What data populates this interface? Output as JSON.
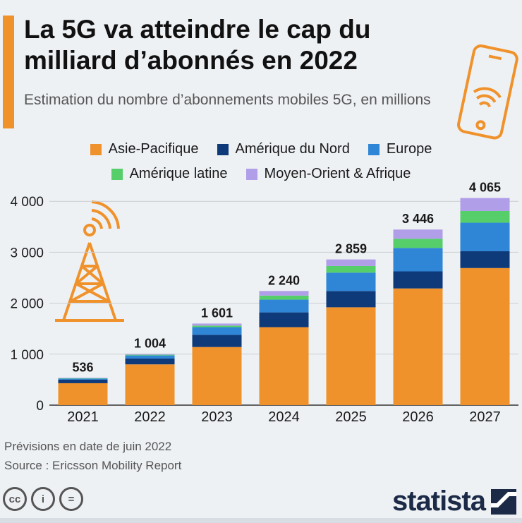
{
  "header": {
    "title": "La 5G va atteindre le cap du milliard d’abonnés en 2022",
    "subtitle": "Estimation du nombre d’abonnements mobiles 5G, en millions"
  },
  "legend": {
    "items": [
      {
        "label": "Asie-Pacifique",
        "color": "#f0922b"
      },
      {
        "label": "Amérique du Nord",
        "color": "#0f3a7a"
      },
      {
        "label": "Europe",
        "color": "#2f86d6"
      },
      {
        "label": "Amérique latine",
        "color": "#56cf6b"
      },
      {
        "label": "Moyen-Orient & Afrique",
        "color": "#b09ee8"
      }
    ]
  },
  "chart_data": {
    "type": "bar",
    "stacked": true,
    "categories": [
      "2021",
      "2022",
      "2023",
      "2024",
      "2025",
      "2026",
      "2027"
    ],
    "series": [
      {
        "name": "Asie-Pacifique",
        "color": "#f0922b",
        "values": [
          430,
          800,
          1140,
          1530,
          1920,
          2290,
          2690
        ]
      },
      {
        "name": "Amérique du Nord",
        "color": "#0f3a7a",
        "values": [
          70,
          115,
          240,
          290,
          320,
          335,
          330
        ]
      },
      {
        "name": "Europe",
        "color": "#2f86d6",
        "values": [
          22,
          60,
          150,
          250,
          360,
          460,
          560
        ]
      },
      {
        "name": "Amérique latine",
        "color": "#56cf6b",
        "values": [
          6,
          14,
          30,
          80,
          130,
          180,
          230
        ]
      },
      {
        "name": "Moyen-Orient & Afrique",
        "color": "#b09ee8",
        "values": [
          8,
          15,
          41,
          90,
          129,
          181,
          255
        ]
      }
    ],
    "totals": [
      536,
      1004,
      1601,
      2240,
      2859,
      3446,
      4065
    ],
    "total_labels": [
      "536",
      "1 004",
      "1 601",
      "2 240",
      "2 859",
      "3 446",
      "4 065"
    ],
    "yticks": [
      0,
      1000,
      2000,
      3000,
      4000
    ],
    "ytick_labels": [
      "0",
      "1 000",
      "2 000",
      "3 000",
      "4 000"
    ],
    "ylim": [
      0,
      4100
    ],
    "grid": true,
    "legend_position": "top"
  },
  "footer": {
    "note": "Prévisions en date de juin 2022",
    "source": "Source : Ericsson Mobility Report",
    "brand": "statista",
    "cc_icons": [
      "cc-icon",
      "by-icon",
      "nd-icon"
    ],
    "cc_symbols": [
      "cc",
      "i",
      "="
    ]
  }
}
